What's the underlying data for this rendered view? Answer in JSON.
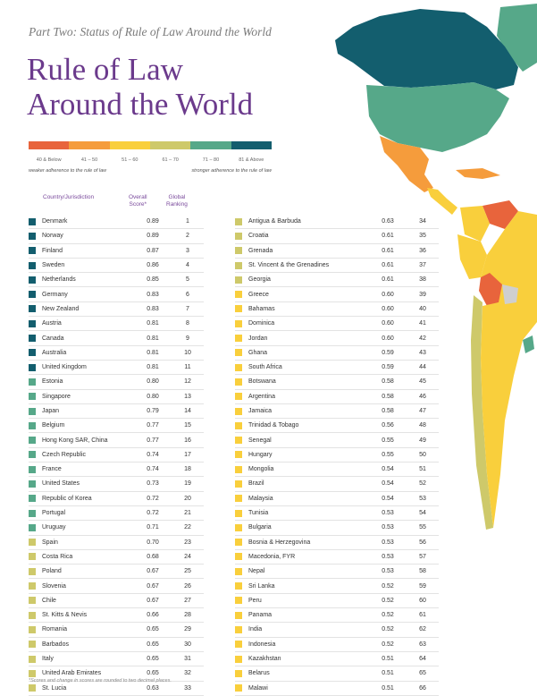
{
  "header": {
    "subtitle": "Part Two: Status of Rule of Law Around the World",
    "title_line1": "Rule of Law",
    "title_line2": "Around the World"
  },
  "legend": {
    "colors": [
      "#e8643c",
      "#f59c3c",
      "#f9cf3c",
      "#cec96a",
      "#56a889",
      "#135e6e"
    ],
    "labels": [
      "40 & Below",
      "41 – 50",
      "51 – 60",
      "61 – 70",
      "71 – 80",
      "81 & Above"
    ],
    "note_left": "weaker adherence to the rule of law",
    "note_right": "stronger adherence to the rule of law"
  },
  "columns": {
    "country": "Country/Jurisdiction",
    "score_line1": "Overall",
    "score_line2": "Score*",
    "rank_line1": "Global",
    "rank_line2": "Ranking"
  },
  "left_rows": [
    {
      "country": "Denmark",
      "score": "0.89",
      "rank": "1",
      "color": "#135e6e"
    },
    {
      "country": "Norway",
      "score": "0.89",
      "rank": "2",
      "color": "#135e6e"
    },
    {
      "country": "Finland",
      "score": "0.87",
      "rank": "3",
      "color": "#135e6e"
    },
    {
      "country": "Sweden",
      "score": "0.86",
      "rank": "4",
      "color": "#135e6e"
    },
    {
      "country": "Netherlands",
      "score": "0.85",
      "rank": "5",
      "color": "#135e6e"
    },
    {
      "country": "Germany",
      "score": "0.83",
      "rank": "6",
      "color": "#135e6e"
    },
    {
      "country": "New Zealand",
      "score": "0.83",
      "rank": "7",
      "color": "#135e6e"
    },
    {
      "country": "Austria",
      "score": "0.81",
      "rank": "8",
      "color": "#135e6e"
    },
    {
      "country": "Canada",
      "score": "0.81",
      "rank": "9",
      "color": "#135e6e"
    },
    {
      "country": "Australia",
      "score": "0.81",
      "rank": "10",
      "color": "#135e6e"
    },
    {
      "country": "United Kingdom",
      "score": "0.81",
      "rank": "11",
      "color": "#135e6e"
    },
    {
      "country": "Estonia",
      "score": "0.80",
      "rank": "12",
      "color": "#56a889"
    },
    {
      "country": "Singapore",
      "score": "0.80",
      "rank": "13",
      "color": "#56a889"
    },
    {
      "country": "Japan",
      "score": "0.79",
      "rank": "14",
      "color": "#56a889"
    },
    {
      "country": "Belgium",
      "score": "0.77",
      "rank": "15",
      "color": "#56a889"
    },
    {
      "country": "Hong Kong SAR, China",
      "score": "0.77",
      "rank": "16",
      "color": "#56a889"
    },
    {
      "country": "Czech Republic",
      "score": "0.74",
      "rank": "17",
      "color": "#56a889"
    },
    {
      "country": "France",
      "score": "0.74",
      "rank": "18",
      "color": "#56a889"
    },
    {
      "country": "United States",
      "score": "0.73",
      "rank": "19",
      "color": "#56a889"
    },
    {
      "country": "Republic of Korea",
      "score": "0.72",
      "rank": "20",
      "color": "#56a889"
    },
    {
      "country": "Portugal",
      "score": "0.72",
      "rank": "21",
      "color": "#56a889"
    },
    {
      "country": "Uruguay",
      "score": "0.71",
      "rank": "22",
      "color": "#56a889"
    },
    {
      "country": "Spain",
      "score": "0.70",
      "rank": "23",
      "color": "#cec96a"
    },
    {
      "country": "Costa Rica",
      "score": "0.68",
      "rank": "24",
      "color": "#cec96a"
    },
    {
      "country": "Poland",
      "score": "0.67",
      "rank": "25",
      "color": "#cec96a"
    },
    {
      "country": "Slovenia",
      "score": "0.67",
      "rank": "26",
      "color": "#cec96a"
    },
    {
      "country": "Chile",
      "score": "0.67",
      "rank": "27",
      "color": "#cec96a"
    },
    {
      "country": "St. Kitts & Nevis",
      "score": "0.66",
      "rank": "28",
      "color": "#cec96a"
    },
    {
      "country": "Romania",
      "score": "0.65",
      "rank": "29",
      "color": "#cec96a"
    },
    {
      "country": "Barbados",
      "score": "0.65",
      "rank": "30",
      "color": "#cec96a"
    },
    {
      "country": "Italy",
      "score": "0.65",
      "rank": "31",
      "color": "#cec96a"
    },
    {
      "country": "United Arab Emirates",
      "score": "0.65",
      "rank": "32",
      "color": "#cec96a"
    },
    {
      "country": "St. Lucia",
      "score": "0.63",
      "rank": "33",
      "color": "#cec96a"
    }
  ],
  "right_rows": [
    {
      "country": "Antigua & Barbuda",
      "score": "0.63",
      "rank": "34",
      "color": "#cec96a"
    },
    {
      "country": "Croatia",
      "score": "0.61",
      "rank": "35",
      "color": "#cec96a"
    },
    {
      "country": "Grenada",
      "score": "0.61",
      "rank": "36",
      "color": "#cec96a"
    },
    {
      "country": "St. Vincent & the Grenadines",
      "score": "0.61",
      "rank": "37",
      "color": "#cec96a"
    },
    {
      "country": "Georgia",
      "score": "0.61",
      "rank": "38",
      "color": "#cec96a"
    },
    {
      "country": "Greece",
      "score": "0.60",
      "rank": "39",
      "color": "#f9cf3c"
    },
    {
      "country": "Bahamas",
      "score": "0.60",
      "rank": "40",
      "color": "#f9cf3c"
    },
    {
      "country": "Dominica",
      "score": "0.60",
      "rank": "41",
      "color": "#f9cf3c"
    },
    {
      "country": "Jordan",
      "score": "0.60",
      "rank": "42",
      "color": "#f9cf3c"
    },
    {
      "country": "Ghana",
      "score": "0.59",
      "rank": "43",
      "color": "#f9cf3c"
    },
    {
      "country": "South Africa",
      "score": "0.59",
      "rank": "44",
      "color": "#f9cf3c"
    },
    {
      "country": "Botswana",
      "score": "0.58",
      "rank": "45",
      "color": "#f9cf3c"
    },
    {
      "country": "Argentina",
      "score": "0.58",
      "rank": "46",
      "color": "#f9cf3c"
    },
    {
      "country": "Jamaica",
      "score": "0.58",
      "rank": "47",
      "color": "#f9cf3c"
    },
    {
      "country": "Trinidad & Tobago",
      "score": "0.56",
      "rank": "48",
      "color": "#f9cf3c"
    },
    {
      "country": "Senegal",
      "score": "0.55",
      "rank": "49",
      "color": "#f9cf3c"
    },
    {
      "country": "Hungary",
      "score": "0.55",
      "rank": "50",
      "color": "#f9cf3c"
    },
    {
      "country": "Mongolia",
      "score": "0.54",
      "rank": "51",
      "color": "#f9cf3c"
    },
    {
      "country": "Brazil",
      "score": "0.54",
      "rank": "52",
      "color": "#f9cf3c"
    },
    {
      "country": "Malaysia",
      "score": "0.54",
      "rank": "53",
      "color": "#f9cf3c"
    },
    {
      "country": "Tunisia",
      "score": "0.53",
      "rank": "54",
      "color": "#f9cf3c"
    },
    {
      "country": "Bulgaria",
      "score": "0.53",
      "rank": "55",
      "color": "#f9cf3c"
    },
    {
      "country": "Bosnia & Herzegovina",
      "score": "0.53",
      "rank": "56",
      "color": "#f9cf3c"
    },
    {
      "country": "Macedonia, FYR",
      "score": "0.53",
      "rank": "57",
      "color": "#f9cf3c"
    },
    {
      "country": "Nepal",
      "score": "0.53",
      "rank": "58",
      "color": "#f9cf3c"
    },
    {
      "country": "Sri Lanka",
      "score": "0.52",
      "rank": "59",
      "color": "#f9cf3c"
    },
    {
      "country": "Peru",
      "score": "0.52",
      "rank": "60",
      "color": "#f9cf3c"
    },
    {
      "country": "Panama",
      "score": "0.52",
      "rank": "61",
      "color": "#f9cf3c"
    },
    {
      "country": "India",
      "score": "0.52",
      "rank": "62",
      "color": "#f9cf3c"
    },
    {
      "country": "Indonesia",
      "score": "0.52",
      "rank": "63",
      "color": "#f9cf3c"
    },
    {
      "country": "Kazakhstan",
      "score": "0.51",
      "rank": "64",
      "color": "#f9cf3c"
    },
    {
      "country": "Belarus",
      "score": "0.51",
      "rank": "65",
      "color": "#f9cf3c"
    },
    {
      "country": "Malawi",
      "score": "0.51",
      "rank": "66",
      "color": "#f9cf3c"
    }
  ],
  "footnote": "*Scores and change in scores are rounded to two decimal places."
}
